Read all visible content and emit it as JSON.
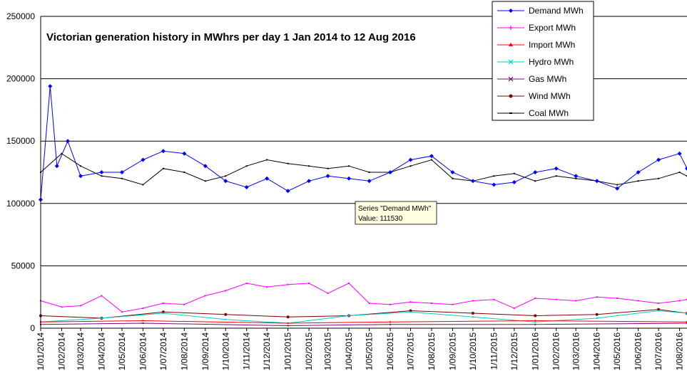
{
  "chart_data": {
    "type": "line",
    "title": "Victorian generation history in MWhrs per day 1 Jan 2014 to 12 Aug 2016",
    "xlabel": "",
    "ylabel": "",
    "ylim": [
      0,
      250000
    ],
    "y_ticks": [
      "0",
      "50000",
      "100000",
      "150000",
      "200000",
      "250000"
    ],
    "y_tick_values": [
      0,
      50000,
      100000,
      150000,
      200000,
      250000
    ],
    "x_range": [
      "2014-01-01",
      "2016-08-12"
    ],
    "x_tick_labels": [
      "1/01/2014",
      "1/02/2014",
      "1/03/2014",
      "1/04/2014",
      "1/05/2014",
      "1/06/2014",
      "1/07/2014",
      "1/08/2014",
      "1/09/2014",
      "1/10/2014",
      "1/11/2014",
      "1/12/2014",
      "1/01/2015",
      "1/02/2015",
      "1/03/2015",
      "1/04/2015",
      "1/05/2015",
      "1/06/2015",
      "1/07/2015",
      "1/08/2015",
      "1/09/2015",
      "1/10/2015",
      "1/11/2015",
      "1/12/2015",
      "1/01/2016",
      "1/02/2016",
      "1/03/2016",
      "1/04/2016",
      "1/05/2016",
      "1/06/2016",
      "1/07/2016",
      "1/08/2016"
    ],
    "x_tick_dates": [
      "2014-01-01",
      "2014-02-01",
      "2014-03-01",
      "2014-04-01",
      "2014-05-01",
      "2014-06-01",
      "2014-07-01",
      "2014-08-01",
      "2014-09-01",
      "2014-10-01",
      "2014-11-01",
      "2014-12-01",
      "2015-01-01",
      "2015-02-01",
      "2015-03-01",
      "2015-04-01",
      "2015-05-01",
      "2015-06-01",
      "2015-07-01",
      "2015-08-01",
      "2015-09-01",
      "2015-10-01",
      "2015-11-01",
      "2015-12-01",
      "2016-01-01",
      "2016-02-01",
      "2016-03-01",
      "2016-04-01",
      "2016-05-01",
      "2016-06-01",
      "2016-07-01",
      "2016-08-01"
    ],
    "grid": "horizontal",
    "legend_position": "top-right",
    "series": [
      {
        "name": "Demand MWh",
        "color": "#0000ff",
        "marker": "diamond",
        "x": [
          "2014-01-01",
          "2014-01-15",
          "2014-01-25",
          "2014-02-10",
          "2014-03-01",
          "2014-04-01",
          "2014-05-01",
          "2014-06-01",
          "2014-07-01",
          "2014-08-01",
          "2014-09-01",
          "2014-10-01",
          "2014-11-01",
          "2014-12-01",
          "2015-01-01",
          "2015-02-01",
          "2015-03-01",
          "2015-04-01",
          "2015-05-01",
          "2015-06-01",
          "2015-07-01",
          "2015-08-01",
          "2015-09-01",
          "2015-10-01",
          "2015-11-01",
          "2015-12-01",
          "2016-01-01",
          "2016-02-01",
          "2016-03-01",
          "2016-04-01",
          "2016-05-01",
          "2016-06-01",
          "2016-07-01",
          "2016-08-01",
          "2016-08-12"
        ],
        "y": [
          103000,
          194000,
          130000,
          150000,
          122000,
          125000,
          125000,
          135000,
          142000,
          140000,
          130000,
          118000,
          113000,
          120000,
          110000,
          118000,
          122000,
          120000,
          118000,
          125000,
          135000,
          138000,
          125000,
          118000,
          115000,
          117000,
          125000,
          128000,
          122000,
          118000,
          112000,
          125000,
          135000,
          140000,
          128000
        ]
      },
      {
        "name": "Export MWh",
        "color": "#ff00ff",
        "marker": "plus",
        "x": [
          "2014-01-01",
          "2014-02-01",
          "2014-03-01",
          "2014-04-01",
          "2014-05-01",
          "2014-06-01",
          "2014-07-01",
          "2014-08-01",
          "2014-09-01",
          "2014-10-01",
          "2014-11-01",
          "2014-12-01",
          "2015-01-01",
          "2015-02-01",
          "2015-03-01",
          "2015-04-01",
          "2015-05-01",
          "2015-06-01",
          "2015-07-01",
          "2015-08-01",
          "2015-09-01",
          "2015-10-01",
          "2015-11-01",
          "2015-12-01",
          "2016-01-01",
          "2016-02-01",
          "2016-03-01",
          "2016-04-01",
          "2016-05-01",
          "2016-06-01",
          "2016-07-01",
          "2016-08-01",
          "2016-08-12"
        ],
        "y": [
          22000,
          17000,
          18000,
          26000,
          13000,
          16000,
          20000,
          19000,
          26000,
          30000,
          36000,
          33000,
          35000,
          36000,
          28000,
          36000,
          20000,
          19000,
          21000,
          20000,
          19000,
          22000,
          23000,
          16000,
          24000,
          23000,
          22000,
          25000,
          24000,
          22000,
          20000,
          22000,
          23000
        ]
      },
      {
        "name": "Import MWh",
        "color": "#ff0000",
        "marker": "triangle",
        "x": [
          "2014-01-01",
          "2014-06-01",
          "2015-01-01",
          "2015-06-01",
          "2016-01-01",
          "2016-08-12"
        ],
        "y": [
          5000,
          6000,
          4000,
          5000,
          6000,
          5000
        ]
      },
      {
        "name": "Hydro MWh",
        "color": "#00cccc",
        "marker": "x",
        "x": [
          "2014-01-01",
          "2014-04-01",
          "2014-07-01",
          "2014-10-01",
          "2015-01-01",
          "2015-04-01",
          "2015-07-01",
          "2015-10-01",
          "2016-01-01",
          "2016-04-01",
          "2016-07-01",
          "2016-08-12"
        ],
        "y": [
          5000,
          8000,
          12000,
          7000,
          4000,
          10000,
          13000,
          9000,
          5000,
          8000,
          14000,
          12000
        ]
      },
      {
        "name": "Gas MWh",
        "color": "#800080",
        "marker": "star",
        "x": [
          "2014-01-01",
          "2014-06-01",
          "2015-01-01",
          "2015-06-01",
          "2016-01-01",
          "2016-08-12"
        ],
        "y": [
          3000,
          4000,
          2000,
          3000,
          3000,
          4000
        ]
      },
      {
        "name": "Wind MWh",
        "color": "#800000",
        "marker": "circle",
        "x": [
          "2014-01-01",
          "2014-04-01",
          "2014-07-01",
          "2014-10-01",
          "2015-01-01",
          "2015-04-01",
          "2015-07-01",
          "2015-10-01",
          "2016-01-01",
          "2016-04-01",
          "2016-07-01",
          "2016-08-12"
        ],
        "y": [
          10000,
          8000,
          13000,
          11000,
          9000,
          10000,
          14000,
          12000,
          10000,
          11000,
          15000,
          12000
        ]
      },
      {
        "name": "Coal MWh",
        "color": "#000000",
        "marker": "dash",
        "x": [
          "2014-01-01",
          "2014-02-01",
          "2014-03-01",
          "2014-04-01",
          "2014-05-01",
          "2014-06-01",
          "2014-07-01",
          "2014-08-01",
          "2014-09-01",
          "2014-10-01",
          "2014-11-01",
          "2014-12-01",
          "2015-01-01",
          "2015-02-01",
          "2015-03-01",
          "2015-04-01",
          "2015-05-01",
          "2015-06-01",
          "2015-07-01",
          "2015-08-01",
          "2015-09-01",
          "2015-10-01",
          "2015-11-01",
          "2015-12-01",
          "2016-01-01",
          "2016-02-01",
          "2016-03-01",
          "2016-04-01",
          "2016-05-01",
          "2016-06-01",
          "2016-07-01",
          "2016-08-01",
          "2016-08-12"
        ],
        "y": [
          125000,
          140000,
          130000,
          122000,
          120000,
          115000,
          128000,
          125000,
          118000,
          122000,
          130000,
          135000,
          132000,
          130000,
          128000,
          130000,
          125000,
          125000,
          130000,
          135000,
          120000,
          118000,
          122000,
          124000,
          118000,
          122000,
          120000,
          118000,
          115000,
          118000,
          120000,
          125000,
          122000
        ]
      }
    ],
    "tooltip": {
      "series_line": "Series \"Demand MWh\"",
      "value_line": "Value: 111530",
      "x": "2015-04-28",
      "y": 111530
    }
  }
}
